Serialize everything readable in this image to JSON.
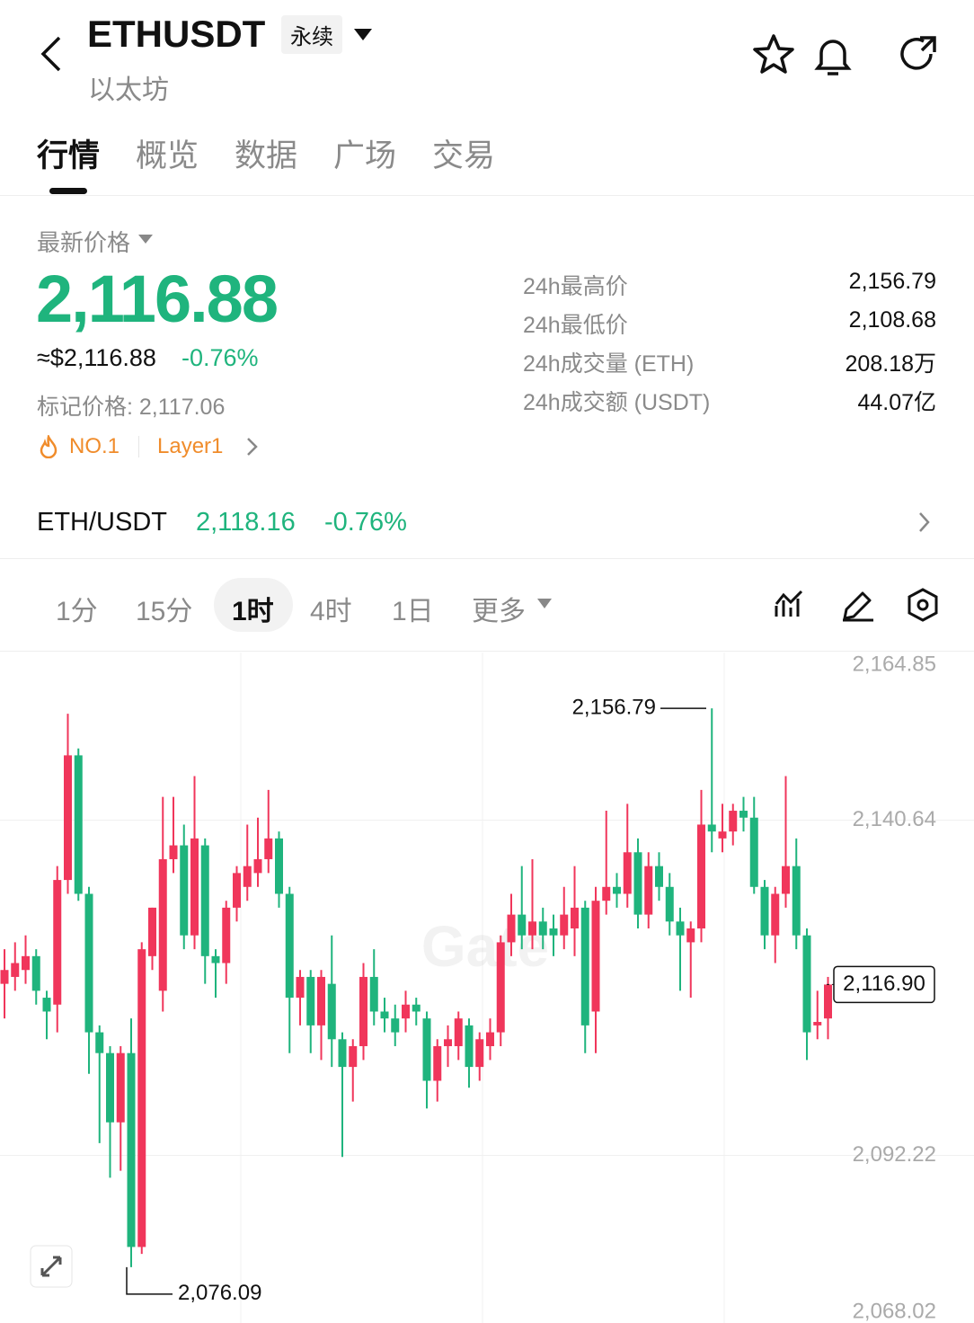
{
  "header": {
    "symbol": "ETHUSDT",
    "badge": "永续",
    "name": "以太坊"
  },
  "tabs": [
    "行情",
    "概览",
    "数据",
    "广场",
    "交易"
  ],
  "price": {
    "label": "最新价格",
    "last": "2,116.88",
    "usd": "≈$2,116.88",
    "change": "-0.76%",
    "mark": "标记价格: 2,117.06",
    "tags": [
      "NO.1",
      "Layer1"
    ]
  },
  "stats": [
    {
      "label": "24h最高价",
      "value": "2,156.79"
    },
    {
      "label": "24h最低价",
      "value": "2,108.68"
    },
    {
      "label": "24h成交量 (ETH)",
      "value": "208.18万"
    },
    {
      "label": "24h成交额 (USDT)",
      "value": "44.07亿"
    }
  ],
  "spot": {
    "pair": "ETH/USDT",
    "price": "2,118.16",
    "change": "-0.76%"
  },
  "intervals": [
    "1分",
    "15分",
    "1时",
    "4时",
    "1日",
    "更多"
  ],
  "chart_data": {
    "type": "candlestick",
    "watermark": "Gate",
    "up_color": "#f0365b",
    "down_color": "#1fb47d",
    "open": [
      2117,
      2118,
      2119,
      2121,
      2115,
      2114,
      2132,
      2150,
      2130,
      2110,
      2107,
      2097,
      2107,
      2079,
      2121,
      2116,
      2135,
      2137,
      2124,
      2137,
      2121,
      2120,
      2128,
      2131,
      2133,
      2135,
      2138,
      2130,
      2115,
      2118,
      2111,
      2117,
      2109,
      2105,
      2108,
      2118,
      2113,
      2112,
      2112,
      2114,
      2112,
      2103,
      2108,
      2108,
      2111,
      2105,
      2108,
      2110,
      2123,
      2127,
      2124,
      2126,
      2125,
      2124,
      2125,
      2128,
      2113,
      2129,
      2131,
      2130,
      2136,
      2127,
      2134,
      2131,
      2126,
      2123,
      2125,
      2140,
      2138,
      2139,
      2142,
      2141,
      2131,
      2124,
      2130,
      2134,
      2124,
      2111,
      2112
    ],
    "high": [
      2122,
      2123,
      2124,
      2122,
      2116,
      2134,
      2156,
      2151,
      2131,
      2111,
      2108,
      2108,
      2112,
      2123,
      2128,
      2144,
      2144,
      2140,
      2147,
      2138,
      2122,
      2129,
      2134,
      2140,
      2141,
      2145,
      2139,
      2131,
      2119,
      2119,
      2119,
      2124,
      2110,
      2109,
      2120,
      2122,
      2115,
      2114,
      2116,
      2115,
      2113,
      2109,
      2111,
      2113,
      2112,
      2110,
      2112,
      2124,
      2130,
      2134,
      2135,
      2128,
      2127,
      2131,
      2134,
      2129,
      2131,
      2142,
      2133,
      2143,
      2138,
      2136,
      2136,
      2133,
      2128,
      2126,
      2145,
      2156.79,
      2143,
      2143,
      2144,
      2144,
      2132,
      2131,
      2147,
      2138,
      2125,
      2116,
      2118
    ],
    "low": [
      2112,
      2116,
      2117,
      2114,
      2109,
      2110,
      2130,
      2129,
      2104,
      2094,
      2089,
      2090,
      2076.09,
      2078,
      2119,
      2113,
      2133,
      2122,
      2122,
      2117,
      2115,
      2117,
      2126,
      2129,
      2131,
      2133,
      2128,
      2107,
      2111,
      2107,
      2106,
      2105,
      2092,
      2100,
      2106,
      2111,
      2110,
      2108,
      2110,
      2111,
      2099,
      2100,
      2105,
      2106,
      2102,
      2103,
      2106,
      2108,
      2121,
      2122,
      2122,
      2122,
      2121,
      2122,
      2121,
      2107,
      2107,
      2127,
      2128,
      2128,
      2125,
      2125,
      2129,
      2124,
      2116,
      2115,
      2123,
      2136,
      2136,
      2137,
      2139,
      2130,
      2122,
      2120,
      2128,
      2122,
      2106,
      2109,
      2109
    ],
    "close": [
      2119,
      2120,
      2121,
      2116,
      2113,
      2132,
      2150,
      2130,
      2110,
      2107,
      2097,
      2107,
      2079,
      2122,
      2128,
      2135,
      2137,
      2124,
      2138,
      2121,
      2120,
      2128,
      2133,
      2134,
      2135,
      2138,
      2130,
      2115,
      2118,
      2111,
      2118,
      2109,
      2105,
      2108,
      2118,
      2113,
      2112,
      2110,
      2114,
      2113,
      2103,
      2108,
      2109,
      2112,
      2105,
      2109,
      2110,
      2123,
      2127,
      2124,
      2126,
      2124,
      2124,
      2127,
      2128,
      2111,
      2129,
      2131,
      2130,
      2136,
      2127,
      2134,
      2131,
      2126,
      2124,
      2125,
      2140,
      2139,
      2139,
      2142,
      2141,
      2131,
      2124,
      2130,
      2134,
      2124,
      2110,
      2111.5,
      2116.9
    ],
    "ylim": [
      2068.02,
      2164.85
    ],
    "yticks": [
      {
        "value": 2164.85,
        "label": "2,164.85"
      },
      {
        "value": 2140.64,
        "label": "2,140.64"
      },
      {
        "value": 2092.22,
        "label": "2,092.22"
      },
      {
        "value": 2068.02,
        "label": "2,068.02"
      }
    ],
    "grid": true,
    "annotations": [
      {
        "value": 2156.79,
        "label": "2,156.79"
      },
      {
        "value": 2076.09,
        "label": "2,076.09"
      }
    ],
    "last_price": {
      "value": 2116.9,
      "label": "2,116.90"
    }
  }
}
